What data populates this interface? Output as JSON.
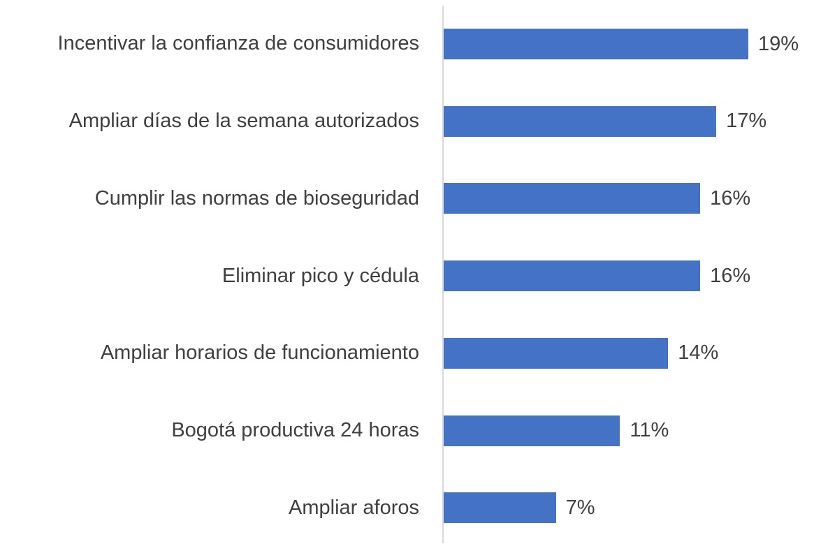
{
  "chart_data": {
    "type": "bar",
    "orientation": "horizontal",
    "categories": [
      "Incentivar la confianza de consumidores",
      "Ampliar días de la semana autorizados",
      "Cumplir las normas de bioseguridad",
      "Eliminar pico y cédula",
      "Ampliar horarios de funcionamiento",
      "Bogotá productiva 24 horas",
      "Ampliar aforos"
    ],
    "values": [
      19,
      17,
      16,
      16,
      14,
      11,
      7
    ],
    "value_labels": [
      "19%",
      "17%",
      "16%",
      "16%",
      "14%",
      "11%",
      "7%"
    ],
    "color": "#4472c4"
  }
}
